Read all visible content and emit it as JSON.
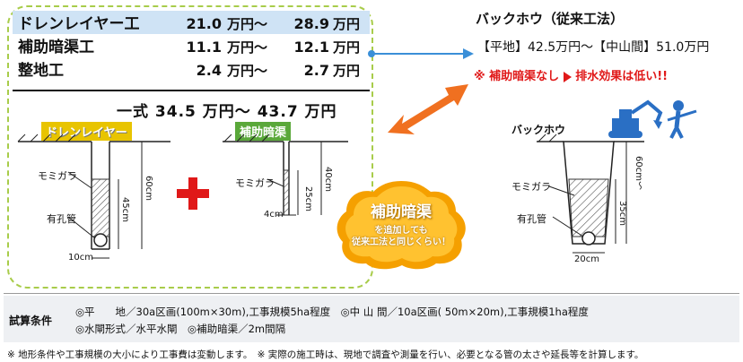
{
  "costs": [
    {
      "name": "ドレンレイヤー工",
      "low": "21.0",
      "sep": "万円～",
      "high": "28.9",
      "unit": "万円"
    },
    {
      "name": "補助暗渠工",
      "low": "11.1",
      "sep": "万円～",
      "high": "12.1",
      "unit": "万円"
    },
    {
      "name": "整地工",
      "low": "2.4",
      "sep": "万円～",
      "high": "2.7",
      "unit": "万円"
    }
  ],
  "total": "一式 34.5 万円～ 43.7 万円",
  "drain_layer": {
    "title": "ドレンレイヤー",
    "label_chaff": "モミガラ",
    "label_pipe": "有孔管",
    "dim_depth": "60cm",
    "dim_fill": "45cm",
    "dim_width": "10cm"
  },
  "aux_drain": {
    "title": "補助暗渠",
    "label_chaff": "モミガラ",
    "dim_depth": "40cm",
    "dim_fill": "25cm",
    "dim_width": "4cm"
  },
  "backhoe": {
    "title": "バックホウ（従来工法）",
    "cost": "【平地】42.5万円～【中山間】51.0万円",
    "note_a": "※ 補助暗渠なし",
    "note_b": "排水効果は低い!!",
    "diagram_title": "バックホウ",
    "label_chaff": "モミガラ",
    "label_pipe": "有孔管",
    "dim_depth": "60cm～",
    "dim_fill": "35cm",
    "dim_width": "20cm"
  },
  "bubble": {
    "title": "補助暗渠",
    "sub1": "を追加しても",
    "sub2": "従来工法と同じくらい！"
  },
  "conditions": {
    "label": "試算条件",
    "line1": "◎平　　地／30a区画(100m×30m),工事規模5ha程度　◎中 山 間／10a区画( 50m×20m),工事規模1ha程度",
    "line2": "◎水閘形式／水平水閘　◎補助暗渠／2m間隔"
  },
  "footnote": "※ 地形条件や工事規模の大小により工事費は変動します。　※ 実際の施工時は、現地で調査や測量を行い、必要となる管の太さや延長等を計算します。",
  "colors": {
    "accent_green": "#a8cc4a",
    "highlight_blue": "#cfe3f5",
    "alert_red": "#e01818",
    "bubble_orange": "#f5a000",
    "arrow_orange": "#f07020"
  }
}
